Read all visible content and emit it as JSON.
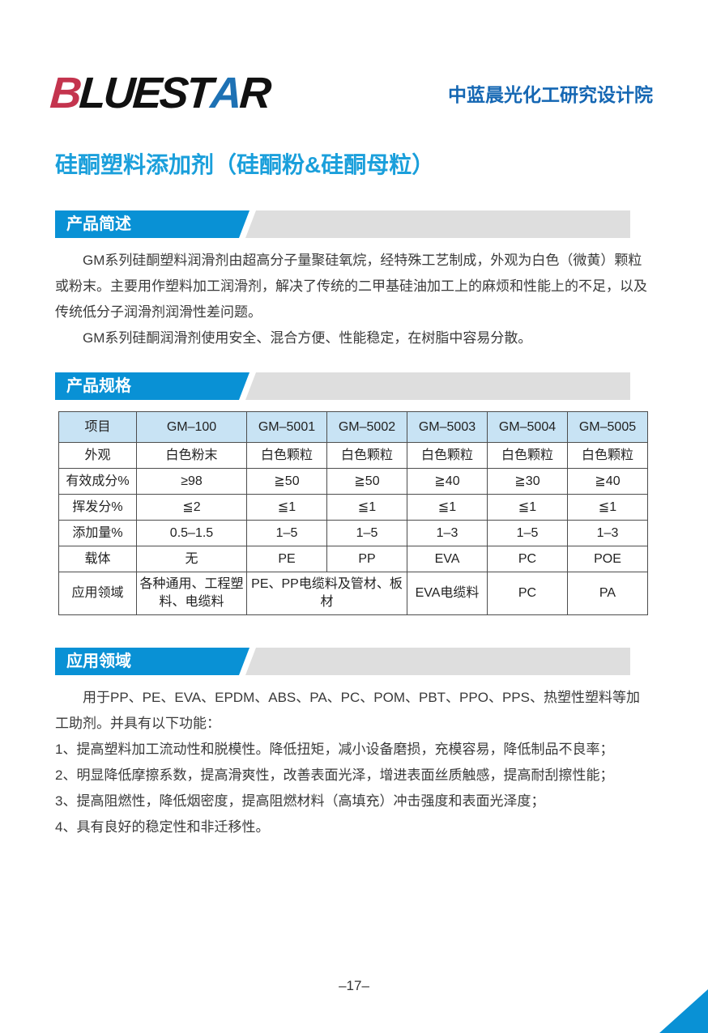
{
  "colors": {
    "accent_blue": "#0991D5",
    "title_blue": "#1A9FDB",
    "org_blue": "#1567B3",
    "logo_red": "#C4344E",
    "logo_blue": "#1D71B4",
    "table_header_bg": "#C8E3F4",
    "banner_gray": "#DEDEDE",
    "border_gray": "#4D4D4D"
  },
  "brand": {
    "logo": {
      "b": "B",
      "luest": "LUEST",
      "a": "A",
      "r": "R",
      "star": "★"
    },
    "org_name": "中蓝晨光化工研究设计院"
  },
  "page": {
    "title": "硅酮塑料添加剂（硅酮粉&硅酮母粒）",
    "page_number": "–17–"
  },
  "sections": {
    "overview": {
      "heading": "产品简述",
      "paragraphs": [
        "GM系列硅酮塑料润滑剂由超高分子量聚硅氧烷，经特殊工艺制成，外观为白色（微黄）颗粒或粉末。主要用作塑料加工润滑剂，解决了传统的二甲基硅油加工上的麻烦和性能上的不足，以及传统低分子润滑剂润滑性差问题。",
        "GM系列硅酮润滑剂使用安全、混合方便、性能稳定，在树脂中容易分散。"
      ]
    },
    "specs": {
      "heading": "产品规格",
      "table": {
        "columns": [
          "项目",
          "GM–100",
          "GM–5001",
          "GM–5002",
          "GM–5003",
          "GM–5004",
          "GM–5005"
        ],
        "rows": [
          {
            "label": "外观",
            "values": [
              "白色粉末",
              "白色颗粒",
              "白色颗粒",
              "白色颗粒",
              "白色颗粒",
              "白色颗粒"
            ],
            "spans": [
              1,
              1,
              1,
              1,
              1,
              1
            ]
          },
          {
            "label": "有效成分%",
            "values": [
              "≥98",
              "≧50",
              "≧50",
              "≧40",
              "≧30",
              "≧40"
            ],
            "spans": [
              1,
              1,
              1,
              1,
              1,
              1
            ]
          },
          {
            "label": "挥发分%",
            "values": [
              "≦2",
              "≦1",
              "≦1",
              "≦1",
              "≦1",
              "≦1"
            ],
            "spans": [
              1,
              1,
              1,
              1,
              1,
              1
            ]
          },
          {
            "label": "添加量%",
            "values": [
              "0.5–1.5",
              "1–5",
              "1–5",
              "1–3",
              "1–5",
              "1–3"
            ],
            "spans": [
              1,
              1,
              1,
              1,
              1,
              1
            ]
          },
          {
            "label": "载体",
            "values": [
              "无",
              "PE",
              "PP",
              "EVA",
              "PC",
              "POE"
            ],
            "spans": [
              1,
              1,
              1,
              1,
              1,
              1
            ]
          },
          {
            "label": "应用领域",
            "values": [
              "各种通用、工程塑料、电缆料",
              "PE、PP电缆料及管材、板材",
              "EVA电缆料",
              "PC",
              "PA"
            ],
            "spans": [
              1,
              2,
              1,
              1,
              1
            ]
          }
        ]
      }
    },
    "applications": {
      "heading": "应用领域",
      "intro": "用于PP、PE、EVA、EPDM、ABS、PA、PC、POM、PBT、PPO、PPS、热塑性塑料等加工助剂。并具有以下功能：",
      "items": [
        "1、提高塑料加工流动性和脱模性。降低扭矩，减小设备磨损，充模容易，降低制品不良率；",
        "2、明显降低摩擦系数，提高滑爽性，改善表面光泽，增进表面丝质触感，提高耐刮擦性能；",
        "3、提高阻燃性，降低烟密度，提高阻燃材料（高填充）冲击强度和表面光泽度；",
        "4、具有良好的稳定性和非迁移性。"
      ]
    }
  }
}
